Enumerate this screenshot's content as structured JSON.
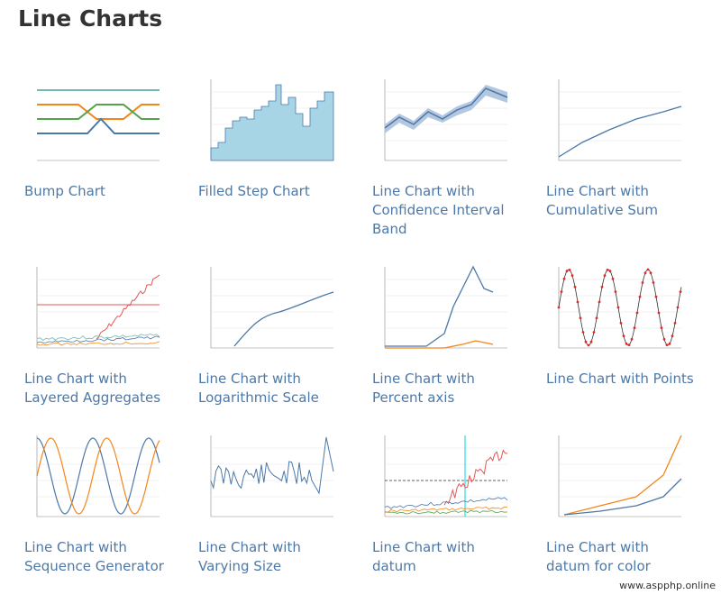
{
  "header": {
    "title": "Line Charts"
  },
  "gallery": {
    "items": [
      {
        "caption": "Bump Chart"
      },
      {
        "caption": "Filled Step Chart"
      },
      {
        "caption": "Line Chart with Confidence Interval Band"
      },
      {
        "caption": "Line Chart with Cumulative Sum"
      },
      {
        "caption": "Line Chart with Layered Aggregates"
      },
      {
        "caption": "Line Chart with Logarithmic Scale"
      },
      {
        "caption": "Line Chart with Percent axis"
      },
      {
        "caption": "Line Chart with Points"
      },
      {
        "caption": "Line Chart with Sequence Generator"
      },
      {
        "caption": "Line Chart with Varying Size"
      },
      {
        "caption": "Line Chart with datum"
      },
      {
        "caption": "Line Chart with datum for color"
      }
    ]
  },
  "watermark": "www.aspphp.online"
}
